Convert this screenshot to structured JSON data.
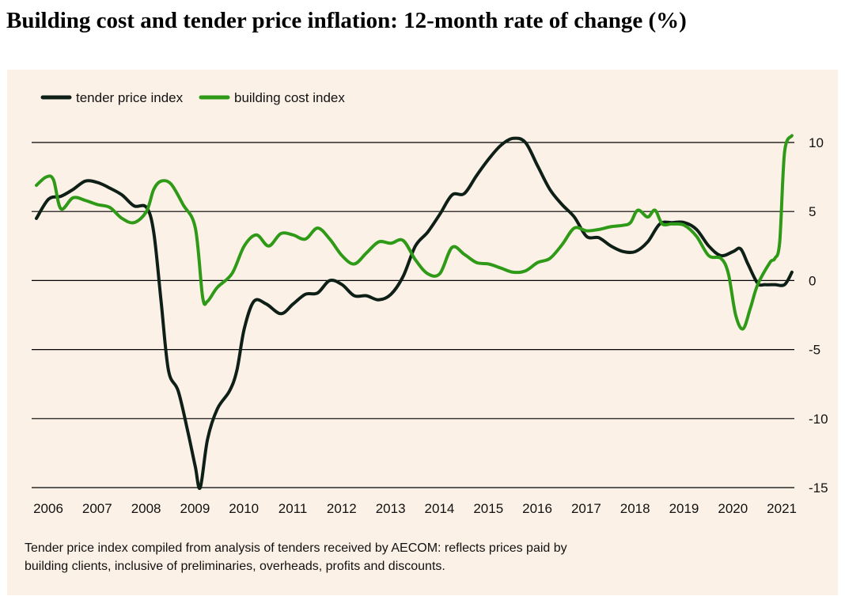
{
  "title": "Building cost and tender price inflation: 12-month rate of change (%)",
  "footnote": {
    "line1": "Tender price index compiled from analysis of tenders received by AECOM: reflects prices paid by",
    "line2": "building clients, inclusive of preliminaries, overheads, profits and discounts."
  },
  "colors": {
    "background": "#fcf1e6",
    "tender": "#0e1f17",
    "building": "#2f9a17",
    "grid": "#000000"
  },
  "chart_data": {
    "type": "line",
    "legend_position": "top-left",
    "grid": true,
    "ylim": [
      -15,
      10
    ],
    "yticks": [
      10,
      5,
      0,
      -5,
      -10,
      -15
    ],
    "ytick_labels": [
      "10",
      "5",
      "0",
      "-5",
      "-10",
      "-15"
    ],
    "xlim": [
      2006.0,
      2021.5
    ],
    "xticks": [
      2006,
      2007,
      2008,
      2009,
      2010,
      2011,
      2012,
      2013,
      2014,
      2015,
      2016,
      2017,
      2018,
      2019,
      2020,
      2021
    ],
    "xtick_labels": [
      "2006",
      "2007",
      "2008",
      "2009",
      "2010",
      "2011",
      "2012",
      "2013",
      "2014",
      "2015",
      "2016",
      "2017",
      "2018",
      "2019",
      "2020",
      "2021"
    ],
    "series": [
      {
        "name": "tender price index",
        "color": "#0e1f17",
        "x": [
          2006.0,
          2006.25,
          2006.5,
          2006.75,
          2007.0,
          2007.25,
          2007.5,
          2007.75,
          2008.0,
          2008.25,
          2008.4,
          2008.55,
          2008.7,
          2008.9,
          2009.1,
          2009.25,
          2009.35,
          2009.5,
          2009.7,
          2009.95,
          2010.1,
          2010.25,
          2010.45,
          2010.7,
          2011.0,
          2011.25,
          2011.5,
          2011.75,
          2012.0,
          2012.25,
          2012.5,
          2012.75,
          2013.0,
          2013.25,
          2013.5,
          2013.75,
          2014.0,
          2014.25,
          2014.5,
          2014.75,
          2015.0,
          2015.25,
          2015.5,
          2015.75,
          2016.0,
          2016.25,
          2016.5,
          2016.75,
          2017.0,
          2017.25,
          2017.5,
          2017.75,
          2018.0,
          2018.25,
          2018.5,
          2018.75,
          2019.0,
          2019.25,
          2019.5,
          2019.75,
          2020.0,
          2020.25,
          2020.4,
          2020.55,
          2020.75,
          2020.9,
          2021.1,
          2021.3,
          2021.45
        ],
        "values": [
          4.5,
          5.9,
          6.1,
          6.6,
          7.2,
          7.1,
          6.7,
          6.2,
          5.4,
          5.3,
          3.5,
          -1.5,
          -6.5,
          -8.0,
          -11.0,
          -13.5,
          -15.0,
          -11.5,
          -9.3,
          -8.0,
          -6.5,
          -3.5,
          -1.5,
          -1.7,
          -2.4,
          -1.7,
          -1.0,
          -0.9,
          0.0,
          -0.3,
          -1.1,
          -1.1,
          -1.4,
          -1.0,
          0.3,
          2.5,
          3.5,
          4.8,
          6.2,
          6.3,
          7.6,
          8.8,
          9.8,
          10.3,
          10.0,
          8.3,
          6.6,
          5.5,
          4.6,
          3.2,
          3.1,
          2.5,
          2.1,
          2.1,
          2.8,
          4.1,
          4.2,
          4.2,
          3.7,
          2.5,
          1.8,
          2.1,
          2.3,
          1.2,
          -0.2,
          -0.3,
          -0.3,
          -0.3,
          0.6
        ]
      },
      {
        "name": "building cost index",
        "color": "#2f9a17",
        "x": [
          2006.0,
          2006.2,
          2006.35,
          2006.5,
          2006.75,
          2007.0,
          2007.25,
          2007.5,
          2007.75,
          2008.0,
          2008.25,
          2008.4,
          2008.55,
          2008.75,
          2009.0,
          2009.25,
          2009.4,
          2009.5,
          2009.7,
          2010.0,
          2010.25,
          2010.5,
          2010.75,
          2011.0,
          2011.25,
          2011.5,
          2011.75,
          2012.0,
          2012.25,
          2012.5,
          2012.75,
          2013.0,
          2013.25,
          2013.5,
          2013.75,
          2014.0,
          2014.25,
          2014.5,
          2014.75,
          2015.0,
          2015.25,
          2015.5,
          2015.75,
          2016.0,
          2016.25,
          2016.5,
          2016.75,
          2017.0,
          2017.25,
          2017.5,
          2017.75,
          2018.0,
          2018.15,
          2018.3,
          2018.5,
          2018.65,
          2018.8,
          2019.0,
          2019.25,
          2019.5,
          2019.75,
          2020.0,
          2020.15,
          2020.3,
          2020.45,
          2020.6,
          2020.75,
          2021.0,
          2021.1,
          2021.2,
          2021.3,
          2021.45
        ],
        "values": [
          6.9,
          7.5,
          7.3,
          5.2,
          6.0,
          5.8,
          5.5,
          5.3,
          4.5,
          4.2,
          5.0,
          6.6,
          7.2,
          7.0,
          5.5,
          3.8,
          -1.2,
          -1.5,
          -0.5,
          0.5,
          2.5,
          3.3,
          2.5,
          3.4,
          3.3,
          3.0,
          3.8,
          3.0,
          1.8,
          1.2,
          2.0,
          2.8,
          2.7,
          2.9,
          1.5,
          0.5,
          0.5,
          2.4,
          1.9,
          1.3,
          1.2,
          0.9,
          0.6,
          0.7,
          1.3,
          1.6,
          2.6,
          3.8,
          3.6,
          3.7,
          3.9,
          4.0,
          4.2,
          5.1,
          4.6,
          5.1,
          4.1,
          4.1,
          4.0,
          3.2,
          1.8,
          1.6,
          0.5,
          -2.5,
          -3.5,
          -2.0,
          -0.3,
          1.3,
          1.6,
          2.8,
          9.3,
          10.5
        ]
      }
    ]
  }
}
